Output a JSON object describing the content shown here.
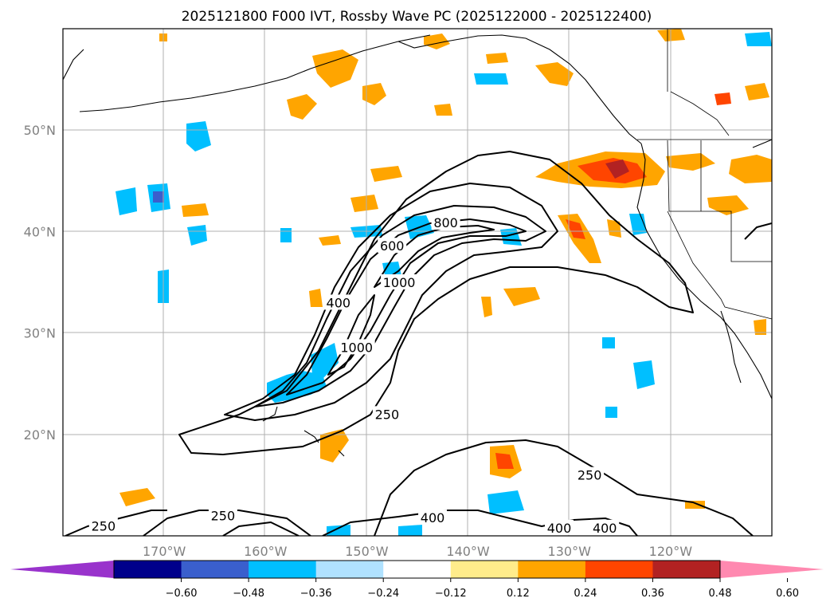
{
  "title": "2025121800 F000 IVT, Rossby Wave PC (2025122000 - 2025122400)",
  "map": {
    "lon_range": [
      -180,
      -110
    ],
    "lat_range": [
      10,
      60
    ],
    "lat_labels": [
      {
        "lat": 50,
        "text": "50°N"
      },
      {
        "lat": 40,
        "text": "40°N"
      },
      {
        "lat": 30,
        "text": "30°N"
      },
      {
        "lat": 20,
        "text": "20°N"
      }
    ],
    "lon_labels": [
      {
        "lon": -170,
        "text": "170°W"
      },
      {
        "lon": -160,
        "text": "160°W"
      },
      {
        "lon": -150,
        "text": "150°W"
      },
      {
        "lon": -140,
        "text": "140°W"
      },
      {
        "lon": -130,
        "text": "130°W"
      },
      {
        "lon": -120,
        "text": "120°W"
      }
    ]
  },
  "contour_labels": [
    {
      "text": "250",
      "lon": -176,
      "lat": 11.0
    },
    {
      "text": "250",
      "lon": -164.2,
      "lat": 12.0
    },
    {
      "text": "250",
      "lon": -148,
      "lat": 22.0
    },
    {
      "text": "250",
      "lon": -128,
      "lat": 16.0
    },
    {
      "text": "400",
      "lon": -143.5,
      "lat": 11.8
    },
    {
      "text": "400",
      "lon": -131,
      "lat": 10.8
    },
    {
      "text": "400",
      "lon": -126.5,
      "lat": 10.8
    },
    {
      "text": "400",
      "lon": -152.8,
      "lat": 33.0
    },
    {
      "text": "600",
      "lon": -147.5,
      "lat": 38.6
    },
    {
      "text": "800",
      "lon": -142.2,
      "lat": 40.9
    },
    {
      "text": "1000",
      "lon": -146.8,
      "lat": 35.0
    },
    {
      "text": "1000",
      "lon": -151,
      "lat": 28.6
    }
  ],
  "colorbar": {
    "ticks": [
      "−0.60",
      "−0.48",
      "−0.36",
      "−0.24",
      "−0.12",
      "0.12",
      "0.24",
      "0.36",
      "0.48",
      "0.60"
    ],
    "colors": [
      "#9933cc",
      "#00008b",
      "#3a5fcd",
      "#00bfff",
      "#b0e2ff",
      "#ffffff",
      "#ffec8b",
      "#ffa500",
      "#ff4500",
      "#b22222",
      "#ff89b0"
    ]
  }
}
